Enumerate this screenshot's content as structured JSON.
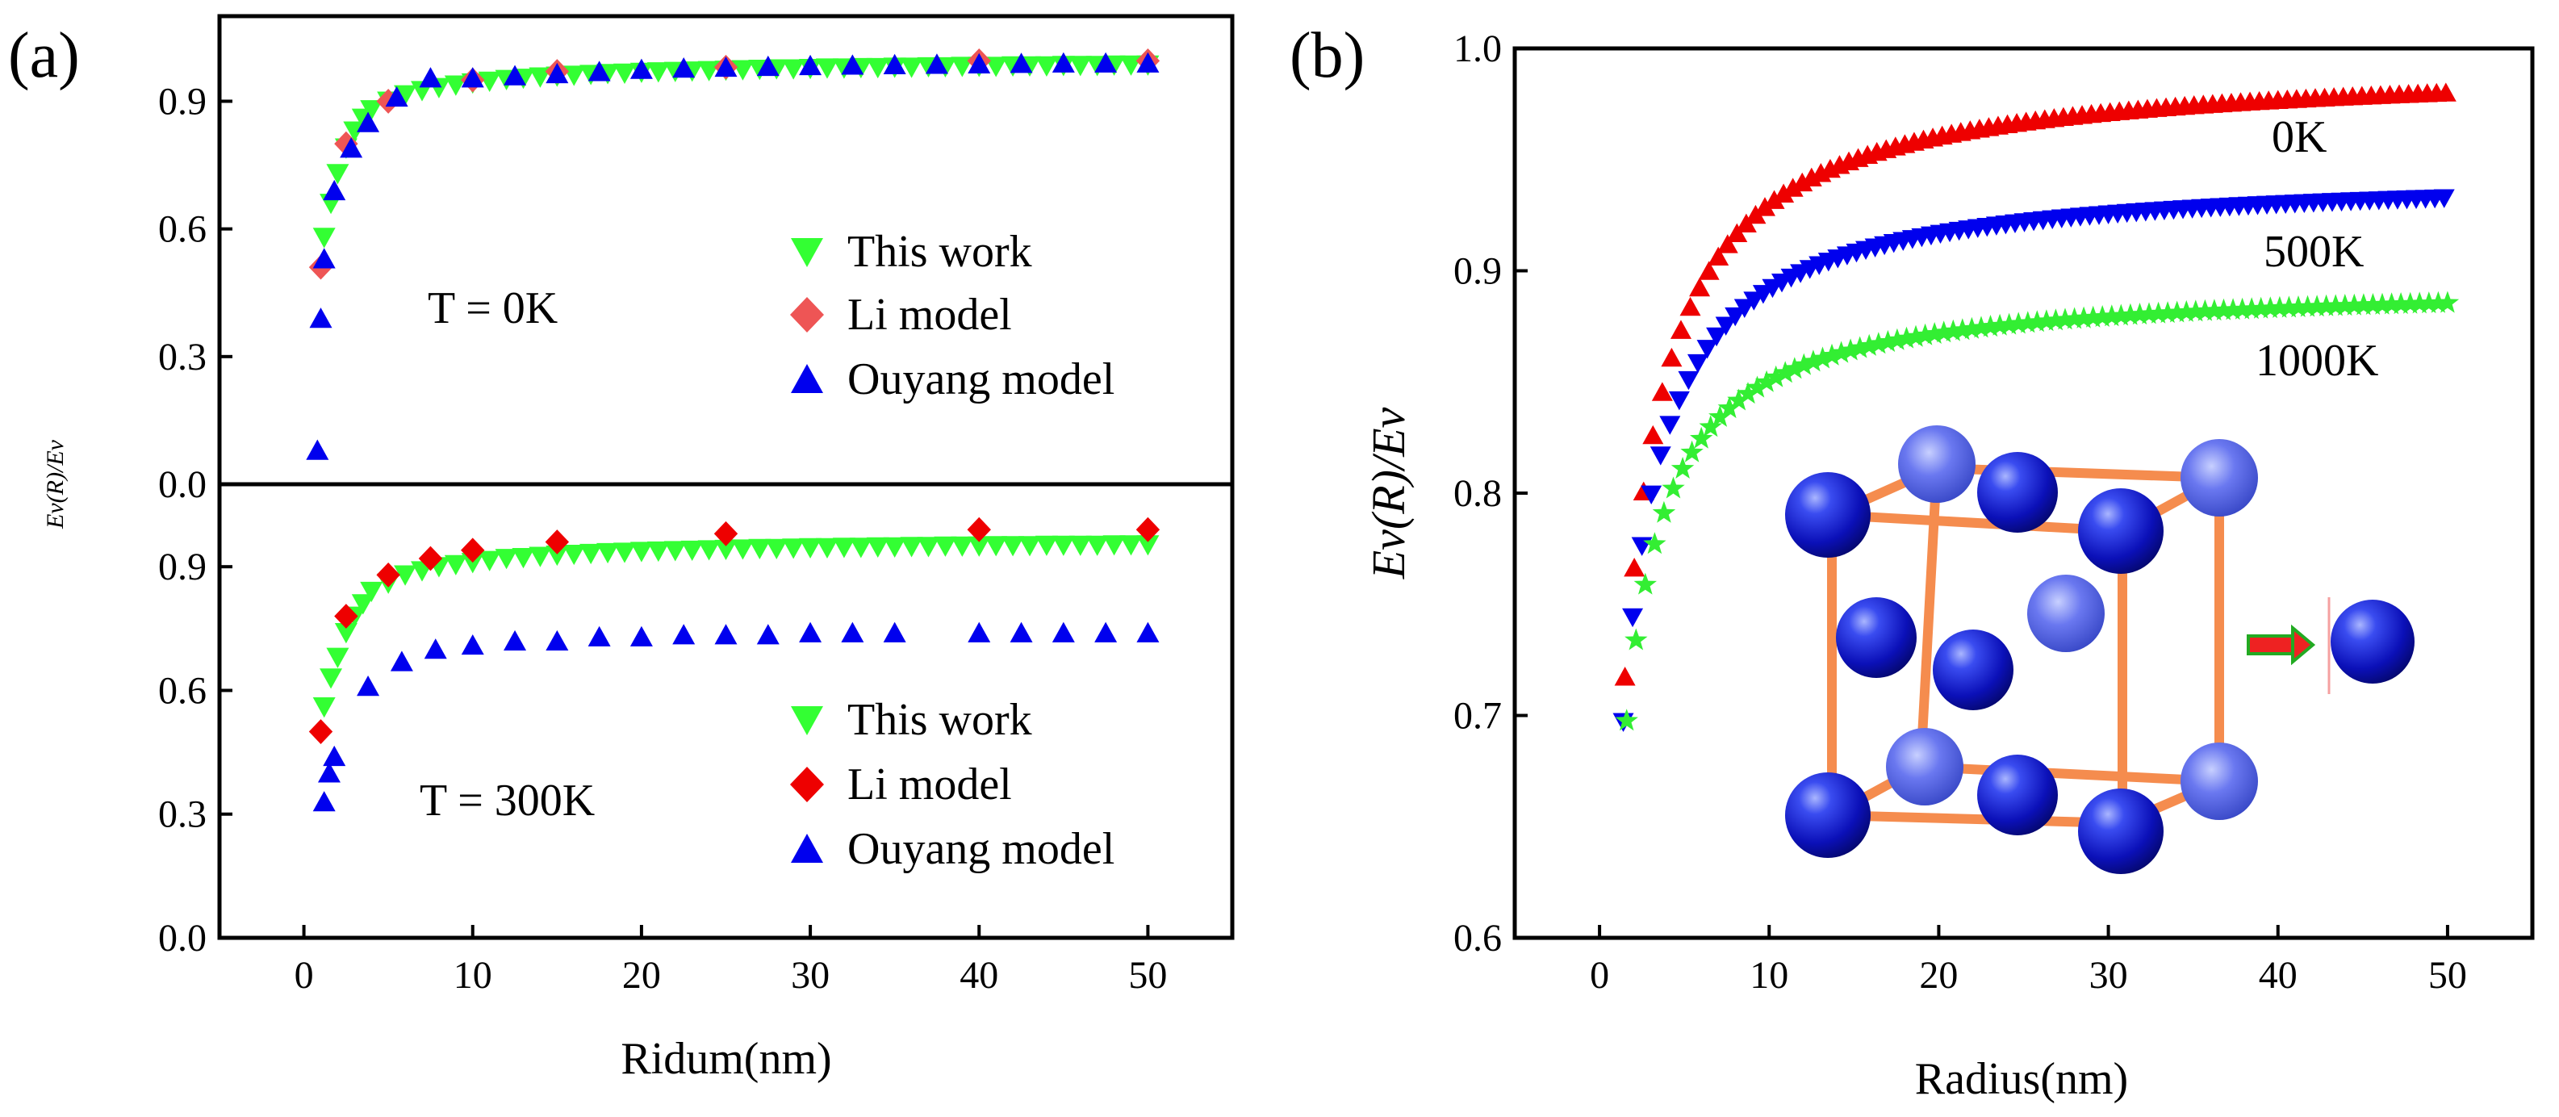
{
  "panel_labels": {
    "a": "(a)",
    "b": "(b)"
  },
  "chart_data": [
    {
      "id": "a-top",
      "type": "scatter",
      "annotation": "T = 0K",
      "xlim": [
        -5,
        55
      ],
      "ylim": [
        0.0,
        1.1
      ],
      "yticks": [
        "0.0",
        "0.3",
        "0.6",
        "0.9"
      ],
      "legend_position": "right",
      "series": [
        {
          "name": "This work",
          "marker": "triangle-down",
          "color": "#33ff33",
          "x": [
            1.2,
            1.6,
            2.0,
            2.5,
            3.0,
            3.5,
            4.0,
            5,
            6,
            7,
            8,
            9,
            10,
            11,
            12,
            13,
            14,
            15,
            16,
            17,
            18,
            19,
            20,
            21,
            22,
            23,
            24,
            25,
            26,
            27,
            28,
            29,
            30,
            31,
            32,
            33,
            34,
            35,
            36,
            37,
            38,
            39,
            40,
            41,
            42,
            43,
            44,
            45,
            46,
            47,
            48,
            49,
            50
          ],
          "y": [
            0.58,
            0.66,
            0.73,
            0.79,
            0.83,
            0.86,
            0.88,
            0.9,
            0.915,
            0.925,
            0.932,
            0.938,
            0.943,
            0.947,
            0.951,
            0.954,
            0.957,
            0.959,
            0.961,
            0.963,
            0.965,
            0.966,
            0.968,
            0.969,
            0.97,
            0.971,
            0.972,
            0.973,
            0.974,
            0.975,
            0.976,
            0.976,
            0.977,
            0.978,
            0.978,
            0.979,
            0.979,
            0.98,
            0.98,
            0.981,
            0.981,
            0.982,
            0.982,
            0.982,
            0.983,
            0.983,
            0.983,
            0.984,
            0.984,
            0.984,
            0.985,
            0.985,
            0.985
          ]
        },
        {
          "name": "Li model",
          "marker": "diamond",
          "color": "#ee5555",
          "x": [
            1,
            2.5,
            5,
            10,
            15,
            25,
            40,
            50
          ],
          "y": [
            0.51,
            0.8,
            0.9,
            0.95,
            0.97,
            0.98,
            0.995,
            0.995
          ]
        },
        {
          "name": "Ouyang model",
          "marker": "triangle-up",
          "color": "#0000ee",
          "x": [
            0.8,
            1.0,
            1.2,
            1.8,
            2.8,
            3.8,
            5.5,
            7.5,
            10,
            12.5,
            15,
            17.5,
            20,
            22.5,
            25,
            27.5,
            30,
            32.5,
            35,
            37.5,
            40,
            42.5,
            45,
            47.5,
            50
          ],
          "y": [
            0.08,
            0.39,
            0.53,
            0.69,
            0.79,
            0.85,
            0.91,
            0.955,
            0.955,
            0.96,
            0.965,
            0.97,
            0.975,
            0.978,
            0.98,
            0.982,
            0.984,
            0.985,
            0.986,
            0.987,
            0.988,
            0.989,
            0.99,
            0.99,
            0.99
          ]
        }
      ]
    },
    {
      "id": "a-bottom",
      "type": "scatter",
      "annotation": "T = 300K",
      "xlim": [
        -5,
        55
      ],
      "ylim": [
        0.0,
        1.1
      ],
      "yticks": [
        "0.0",
        "0.3",
        "0.6",
        "0.9"
      ],
      "xticks": [
        "0",
        "10",
        "20",
        "30",
        "40",
        "50"
      ],
      "xlabel": "Ridum(nm)",
      "ylabel": "Ev(R)/Ev",
      "legend_position": "right",
      "series": [
        {
          "name": "This work",
          "marker": "triangle-down",
          "color": "#33ff33",
          "x": [
            1.2,
            1.6,
            2.0,
            2.5,
            3.0,
            3.5,
            4.0,
            5,
            6,
            7,
            8,
            9,
            10,
            11,
            12,
            13,
            14,
            15,
            16,
            17,
            18,
            19,
            20,
            21,
            22,
            23,
            24,
            25,
            26,
            27,
            28,
            29,
            30,
            31,
            32,
            33,
            34,
            35,
            36,
            37,
            38,
            39,
            40,
            41,
            42,
            43,
            44,
            45,
            46,
            47,
            48,
            49,
            50
          ],
          "y": [
            0.56,
            0.63,
            0.68,
            0.74,
            0.78,
            0.81,
            0.84,
            0.86,
            0.88,
            0.89,
            0.9,
            0.905,
            0.91,
            0.915,
            0.92,
            0.922,
            0.925,
            0.928,
            0.93,
            0.932,
            0.934,
            0.935,
            0.937,
            0.938,
            0.939,
            0.94,
            0.941,
            0.942,
            0.943,
            0.944,
            0.944,
            0.945,
            0.946,
            0.946,
            0.947,
            0.947,
            0.948,
            0.948,
            0.949,
            0.949,
            0.95,
            0.95,
            0.95,
            0.951,
            0.951,
            0.951,
            0.952,
            0.952,
            0.952,
            0.952,
            0.953,
            0.953,
            0.953
          ]
        },
        {
          "name": "Li model",
          "marker": "diamond",
          "color": "#ee0000",
          "x": [
            1,
            2.5,
            5,
            7.5,
            10,
            15,
            25,
            40,
            50
          ],
          "y": [
            0.5,
            0.78,
            0.88,
            0.92,
            0.94,
            0.96,
            0.98,
            0.99,
            0.99
          ]
        },
        {
          "name": "Ouyang model",
          "marker": "triangle-up",
          "color": "#0000ee",
          "x": [
            1.2,
            1.5,
            1.8,
            3.8,
            5.8,
            7.8,
            10,
            12.5,
            15,
            17.5,
            20,
            22.5,
            25,
            27.5,
            30,
            32.5,
            35,
            40,
            42.5,
            45,
            47.5,
            50
          ],
          "y": [
            0.33,
            0.4,
            0.44,
            0.61,
            0.67,
            0.7,
            0.71,
            0.72,
            0.72,
            0.73,
            0.73,
            0.735,
            0.735,
            0.735,
            0.74,
            0.74,
            0.74,
            0.74,
            0.74,
            0.74,
            0.74,
            0.74
          ]
        }
      ]
    },
    {
      "id": "b",
      "type": "scatter",
      "xlabel": "Radius(nm)",
      "ylabel": "Ev(R)/Ev",
      "xlim": [
        -5,
        55
      ],
      "ylim": [
        0.6,
        1.0
      ],
      "xticks": [
        "0",
        "10",
        "20",
        "30",
        "40",
        "50"
      ],
      "yticks": [
        "0.6",
        "0.7",
        "0.8",
        "0.9",
        "1.0"
      ],
      "series": [
        {
          "name": "0K",
          "marker": "triangle-up",
          "color": "#ee0000",
          "asymptote": 0.994,
          "scale": 0.71,
          "x_start": 1.5,
          "x_step": 0.55
        },
        {
          "name": "500K",
          "marker": "triangle-down",
          "color": "#0000ee",
          "asymptote": 0.944,
          "scale": 0.61,
          "x_start": 1.4,
          "x_step": 0.55
        },
        {
          "name": "1000K",
          "marker": "star",
          "color": "#33ee33",
          "asymptote": 0.895,
          "scale": 0.54,
          "x_start": 1.6,
          "x_step": 0.55
        }
      ],
      "inset": {
        "description_icon": "fcc-unit-cell-to-atom"
      }
    }
  ]
}
